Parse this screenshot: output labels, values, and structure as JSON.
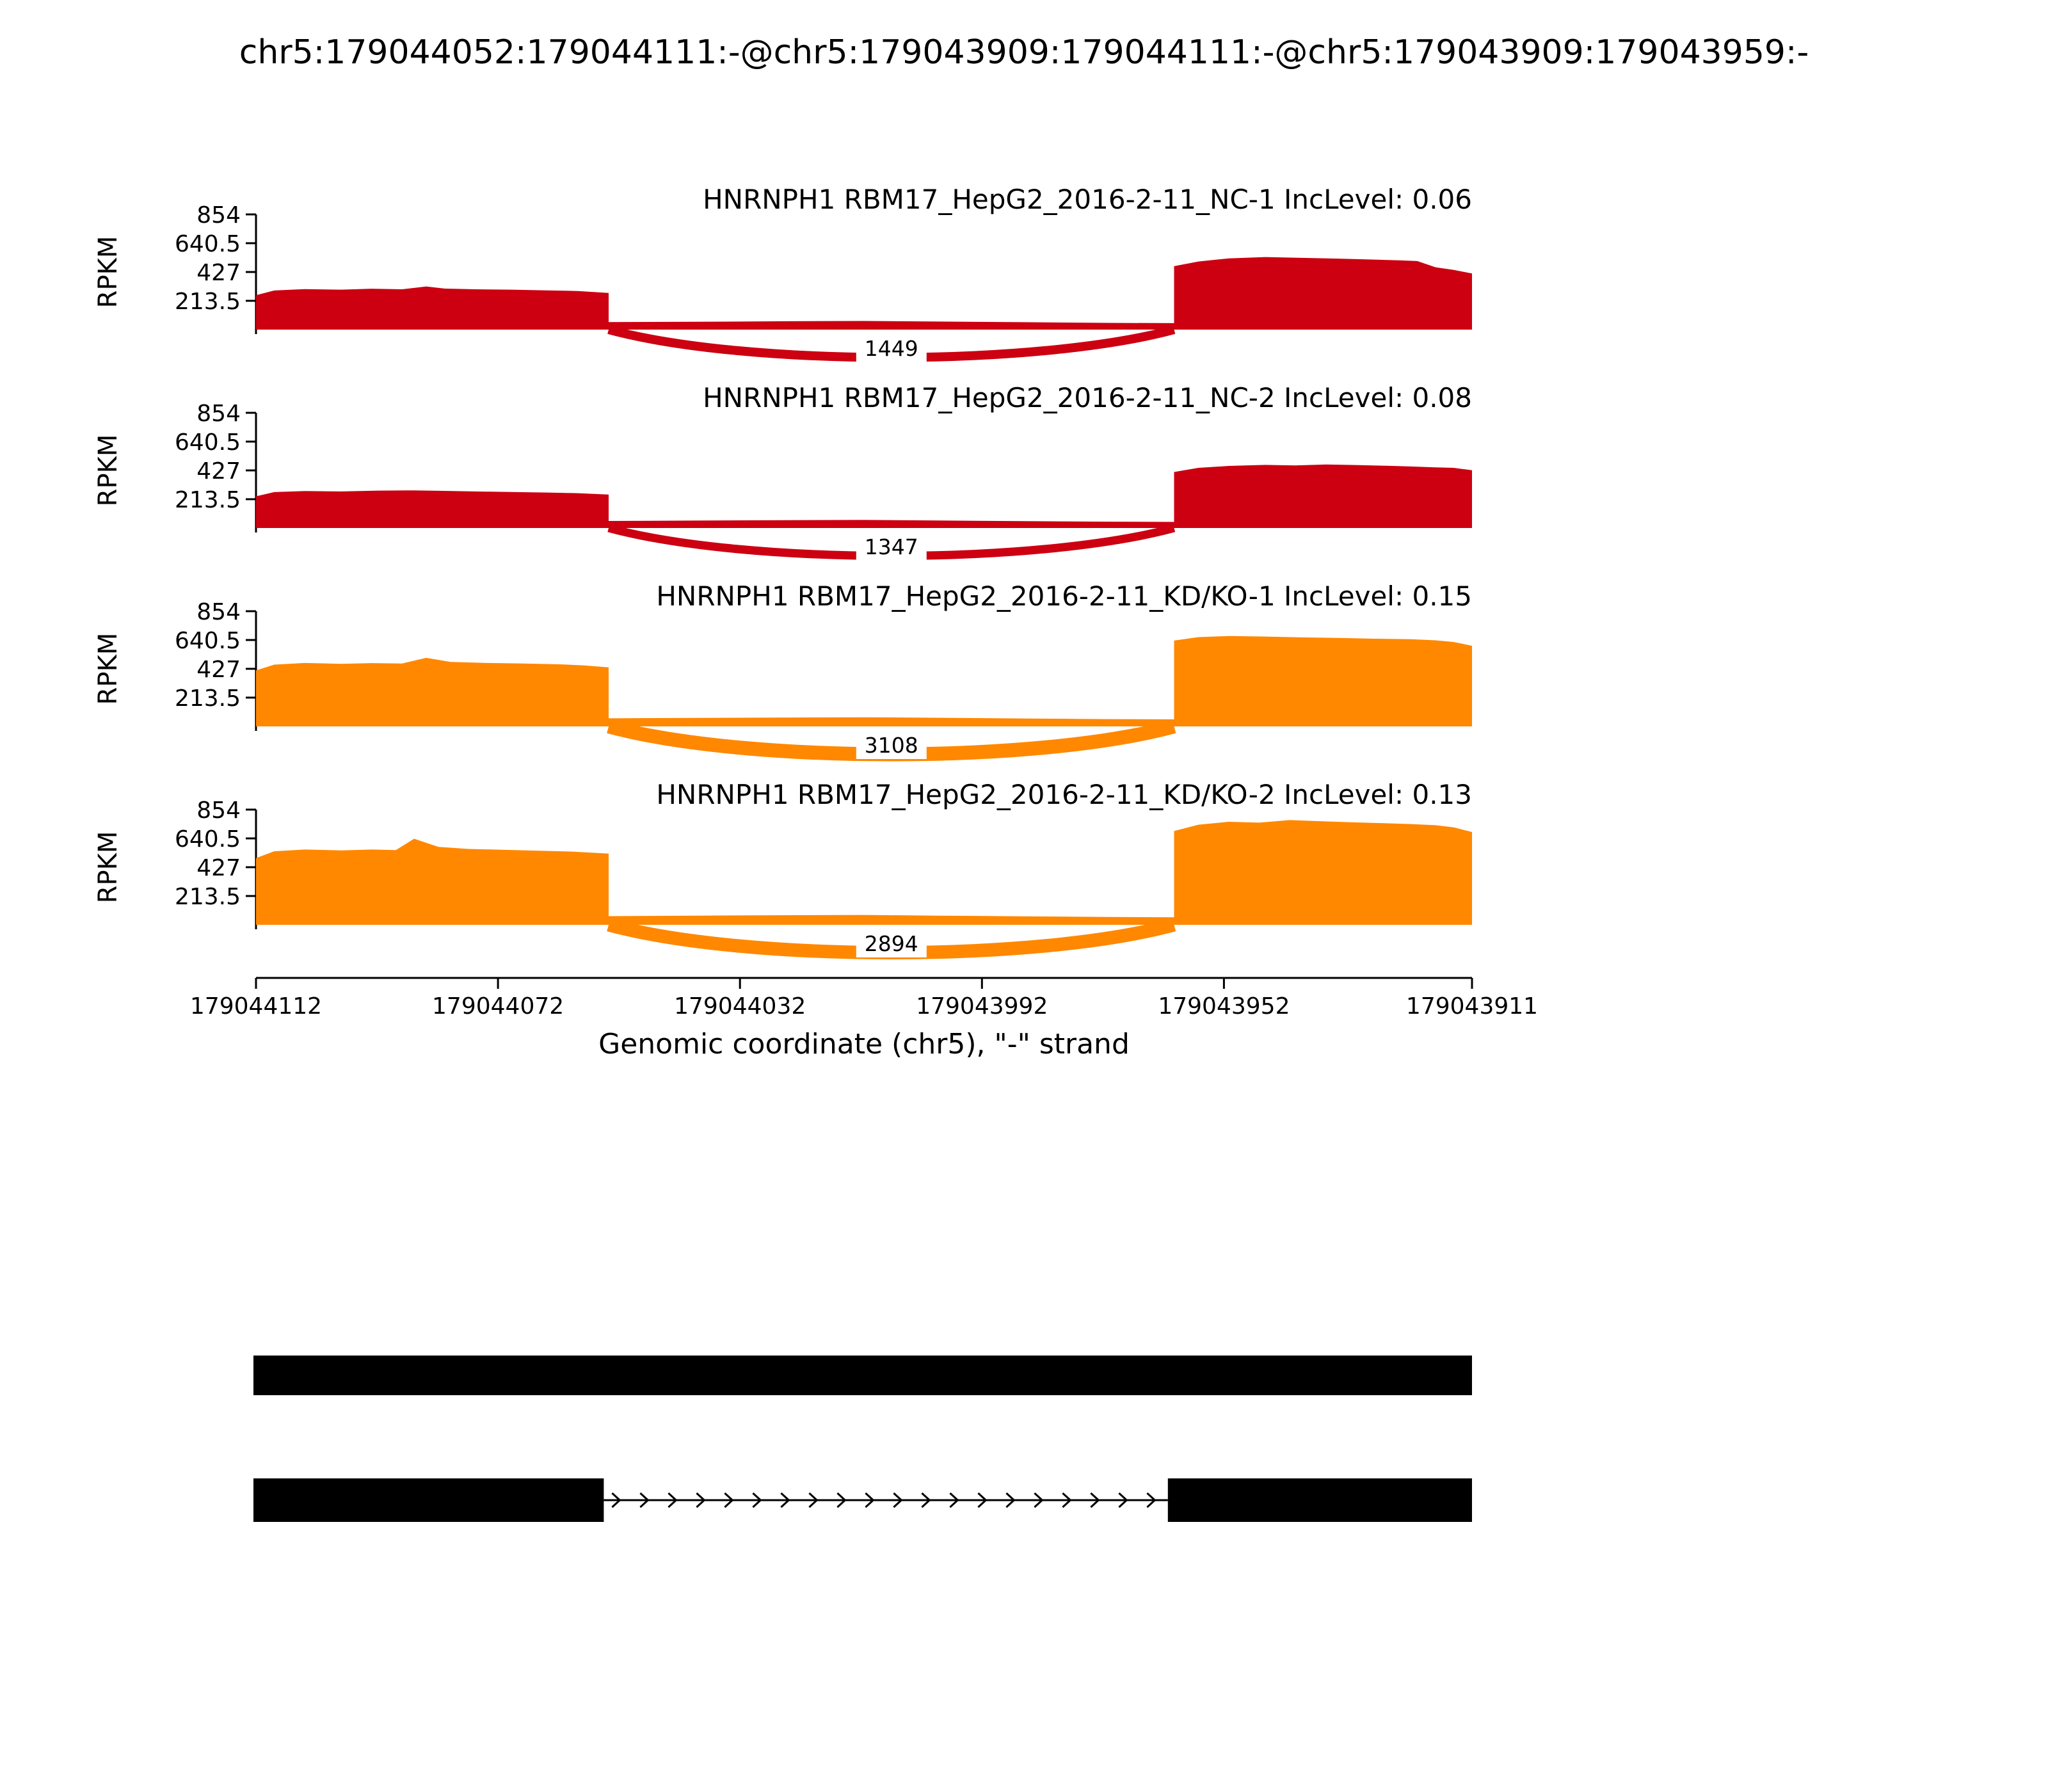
{
  "title": "chr5:179044052:179044111:-@chr5:179043909:179044111:-@chr5:179043909:179043959:-",
  "chart_data": {
    "type": "area",
    "plot_kind": "rna-seq-sashimi",
    "y_axis_label": "RPKM",
    "y_ticks": [
      "854",
      "640.5",
      "427",
      "213.5"
    ],
    "y_max": 854,
    "x_label": "Genomic coordinate (chr5), \"-\" strand",
    "x_ticks": [
      "179044112",
      "179044072",
      "179044032",
      "179043992",
      "179043952",
      "179043911"
    ],
    "strand": "-",
    "tracks": [
      {
        "label": "HNRNPH1 RBM17_HepG2_2016-2-11_NC-1 IncLevel: 0.06",
        "inc_level": 0.06,
        "color": "#CC0011",
        "junction": {
          "from": 0.29,
          "to": 0.755,
          "count": 1449,
          "width": 14
        },
        "coverage": [
          [
            0,
            0
          ],
          [
            0,
            255
          ],
          [
            0.015,
            290
          ],
          [
            0.04,
            300
          ],
          [
            0.07,
            296
          ],
          [
            0.095,
            303
          ],
          [
            0.12,
            299
          ],
          [
            0.14,
            320
          ],
          [
            0.155,
            304
          ],
          [
            0.18,
            299
          ],
          [
            0.21,
            296
          ],
          [
            0.24,
            291
          ],
          [
            0.265,
            286
          ],
          [
            0.29,
            272
          ],
          [
            0.29,
            56
          ],
          [
            0.36,
            58
          ],
          [
            0.44,
            62
          ],
          [
            0.5,
            64
          ],
          [
            0.56,
            60
          ],
          [
            0.63,
            55
          ],
          [
            0.7,
            50
          ],
          [
            0.755,
            48
          ],
          [
            0.755,
            470
          ],
          [
            0.775,
            505
          ],
          [
            0.8,
            528
          ],
          [
            0.83,
            538
          ],
          [
            0.86,
            532
          ],
          [
            0.89,
            526
          ],
          [
            0.915,
            520
          ],
          [
            0.94,
            514
          ],
          [
            0.955,
            508
          ],
          [
            0.97,
            462
          ],
          [
            0.985,
            442
          ],
          [
            1,
            416
          ],
          [
            1,
            0
          ]
        ]
      },
      {
        "label": "HNRNPH1 RBM17_HepG2_2016-2-11_NC-2 IncLevel: 0.08",
        "inc_level": 0.08,
        "color": "#CC0011",
        "junction": {
          "from": 0.29,
          "to": 0.755,
          "count": 1347,
          "width": 13
        },
        "coverage": [
          [
            0,
            0
          ],
          [
            0,
            235
          ],
          [
            0.015,
            266
          ],
          [
            0.04,
            274
          ],
          [
            0.07,
            271
          ],
          [
            0.1,
            277
          ],
          [
            0.13,
            279
          ],
          [
            0.155,
            275
          ],
          [
            0.18,
            271
          ],
          [
            0.21,
            267
          ],
          [
            0.24,
            263
          ],
          [
            0.265,
            258
          ],
          [
            0.29,
            248
          ],
          [
            0.29,
            52
          ],
          [
            0.36,
            55
          ],
          [
            0.44,
            58
          ],
          [
            0.5,
            60
          ],
          [
            0.56,
            56
          ],
          [
            0.63,
            51
          ],
          [
            0.7,
            47
          ],
          [
            0.755,
            45
          ],
          [
            0.755,
            415
          ],
          [
            0.775,
            446
          ],
          [
            0.8,
            460
          ],
          [
            0.83,
            468
          ],
          [
            0.855,
            464
          ],
          [
            0.88,
            471
          ],
          [
            0.905,
            467
          ],
          [
            0.93,
            461
          ],
          [
            0.95,
            456
          ],
          [
            0.97,
            450
          ],
          [
            0.985,
            446
          ],
          [
            1,
            428
          ],
          [
            1,
            0
          ]
        ]
      },
      {
        "label": "HNRNPH1 RBM17_HepG2_2016-2-11_KD/KO-1 IncLevel: 0.15",
        "inc_level": 0.15,
        "color": "#FF8800",
        "junction": {
          "from": 0.29,
          "to": 0.755,
          "count": 3108,
          "width": 22
        },
        "coverage": [
          [
            0,
            0
          ],
          [
            0,
            415
          ],
          [
            0.015,
            458
          ],
          [
            0.04,
            470
          ],
          [
            0.07,
            464
          ],
          [
            0.095,
            469
          ],
          [
            0.12,
            466
          ],
          [
            0.14,
            508
          ],
          [
            0.16,
            478
          ],
          [
            0.19,
            470
          ],
          [
            0.22,
            466
          ],
          [
            0.25,
            460
          ],
          [
            0.27,
            452
          ],
          [
            0.29,
            438
          ],
          [
            0.29,
            60
          ],
          [
            0.36,
            63
          ],
          [
            0.44,
            66
          ],
          [
            0.5,
            68
          ],
          [
            0.56,
            64
          ],
          [
            0.63,
            59
          ],
          [
            0.7,
            54
          ],
          [
            0.755,
            52
          ],
          [
            0.755,
            636
          ],
          [
            0.775,
            662
          ],
          [
            0.8,
            670
          ],
          [
            0.83,
            666
          ],
          [
            0.86,
            660
          ],
          [
            0.89,
            656
          ],
          [
            0.92,
            650
          ],
          [
            0.95,
            646
          ],
          [
            0.97,
            638
          ],
          [
            0.985,
            626
          ],
          [
            1,
            598
          ],
          [
            1,
            0
          ]
        ]
      },
      {
        "label": "HNRNPH1 RBM17_HepG2_2016-2-11_KD/KO-2 IncLevel: 0.13",
        "inc_level": 0.13,
        "color": "#FF8800",
        "junction": {
          "from": 0.29,
          "to": 0.755,
          "count": 2894,
          "width": 21
        },
        "coverage": [
          [
            0,
            0
          ],
          [
            0,
            495
          ],
          [
            0.015,
            545
          ],
          [
            0.04,
            558
          ],
          [
            0.07,
            552
          ],
          [
            0.095,
            558
          ],
          [
            0.115,
            554
          ],
          [
            0.13,
            638
          ],
          [
            0.15,
            578
          ],
          [
            0.175,
            562
          ],
          [
            0.2,
            557
          ],
          [
            0.23,
            550
          ],
          [
            0.26,
            543
          ],
          [
            0.29,
            528
          ],
          [
            0.29,
            64
          ],
          [
            0.36,
            68
          ],
          [
            0.44,
            71
          ],
          [
            0.5,
            73
          ],
          [
            0.56,
            68
          ],
          [
            0.63,
            63
          ],
          [
            0.7,
            58
          ],
          [
            0.755,
            56
          ],
          [
            0.755,
            695
          ],
          [
            0.775,
            742
          ],
          [
            0.8,
            764
          ],
          [
            0.825,
            757
          ],
          [
            0.85,
            776
          ],
          [
            0.875,
            768
          ],
          [
            0.9,
            760
          ],
          [
            0.925,
            754
          ],
          [
            0.95,
            747
          ],
          [
            0.97,
            738
          ],
          [
            0.985,
            722
          ],
          [
            1,
            688
          ],
          [
            1,
            0
          ]
        ]
      }
    ],
    "gene_model": {
      "color": "#000000",
      "rows": [
        {
          "exons": [
            [
              0,
              1
            ]
          ],
          "arrows": false
        },
        {
          "exons": [
            [
              0,
              0.286
            ],
            [
              0.752,
              1
            ]
          ],
          "arrows": true
        }
      ]
    }
  }
}
